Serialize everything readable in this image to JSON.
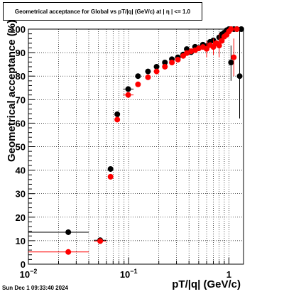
{
  "header": {
    "title": "Geometrical acceptance for Global vs pT/|q| (GeV/c) at |  η  | <= 1.0"
  },
  "footer": {
    "timestamp": "Sun Dec  1 09:33:40 2024"
  },
  "chart_data": {
    "type": "scatter",
    "title": "Geometrical acceptance for Global vs pT/|q| (GeV/c) at |  η  | <= 1.0",
    "xlabel": "pT/|q| (GeV/c)",
    "ylabel": "Geometrical acceptance (%)",
    "xscale": "log",
    "xlim": [
      0.01,
      1.4
    ],
    "ylim": [
      0,
      100
    ],
    "grid": true,
    "colors": {
      "black_series": "#000000",
      "red_series": "#ff0000"
    },
    "xticks": [
      {
        "value": 0.01,
        "base": "10",
        "exp": "−2"
      },
      {
        "value": 0.1,
        "base": "10",
        "exp": "−1"
      },
      {
        "value": 1,
        "base": "1",
        "exp": ""
      }
    ],
    "yticks": [
      0,
      10,
      20,
      30,
      40,
      50,
      60,
      70,
      80,
      90,
      100
    ],
    "series": [
      {
        "color": "#000000",
        "points": [
          {
            "x": 0.025,
            "y": 13.6,
            "xerr": [
              0.01,
              0.04
            ]
          },
          {
            "x": 0.052,
            "y": 10.2,
            "xerr": [
              0.045,
              0.06
            ]
          },
          {
            "x": 0.066,
            "y": 40.5
          },
          {
            "x": 0.077,
            "y": 63.8
          },
          {
            "x": 0.099,
            "y": 74.5,
            "xerr": [
              0.088,
              0.112
            ]
          },
          {
            "x": 0.124,
            "y": 80.0
          },
          {
            "x": 0.156,
            "y": 82.0
          },
          {
            "x": 0.19,
            "y": 84.0
          },
          {
            "x": 0.23,
            "y": 85.8
          },
          {
            "x": 0.27,
            "y": 87.2
          },
          {
            "x": 0.31,
            "y": 88.0
          },
          {
            "x": 0.35,
            "y": 89.2
          },
          {
            "x": 0.38,
            "y": 91.5
          },
          {
            "x": 0.42,
            "y": 90.2
          },
          {
            "x": 0.46,
            "y": 92.5
          },
          {
            "x": 0.5,
            "y": 92.0
          },
          {
            "x": 0.55,
            "y": 93.4
          },
          {
            "x": 0.6,
            "y": 92.8
          },
          {
            "x": 0.65,
            "y": 94.6
          },
          {
            "x": 0.7,
            "y": 95.2
          },
          {
            "x": 0.75,
            "y": 94.0
          },
          {
            "x": 0.8,
            "y": 96.5
          },
          {
            "x": 0.85,
            "y": 97.8
          },
          {
            "x": 0.9,
            "y": 98.5
          },
          {
            "x": 0.95,
            "y": 99.5
          },
          {
            "x": 1.0,
            "y": 100.0
          },
          {
            "x": 1.05,
            "y": 85.8,
            "yerr": [
              78,
              93
            ]
          },
          {
            "x": 1.12,
            "y": 100.0
          },
          {
            "x": 1.2,
            "y": 100.0
          },
          {
            "x": 1.28,
            "y": 80.0,
            "yerr": [
              62,
              100
            ]
          },
          {
            "x": 1.33,
            "y": 100.0
          }
        ]
      },
      {
        "color": "#ff0000",
        "points": [
          {
            "x": 0.025,
            "y": 5.2,
            "xerr": [
              0.01,
              0.04
            ]
          },
          {
            "x": 0.052,
            "y": 9.8,
            "xerr": [
              0.045,
              0.06
            ]
          },
          {
            "x": 0.066,
            "y": 37.2
          },
          {
            "x": 0.077,
            "y": 61.5
          },
          {
            "x": 0.099,
            "y": 72.0,
            "xerr": [
              0.088,
              0.112
            ]
          },
          {
            "x": 0.124,
            "y": 76.5
          },
          {
            "x": 0.156,
            "y": 79.5
          },
          {
            "x": 0.19,
            "y": 82.0
          },
          {
            "x": 0.23,
            "y": 84.0
          },
          {
            "x": 0.27,
            "y": 85.8
          },
          {
            "x": 0.31,
            "y": 87.0
          },
          {
            "x": 0.35,
            "y": 88.6
          },
          {
            "x": 0.38,
            "y": 89.8
          },
          {
            "x": 0.42,
            "y": 90.6
          },
          {
            "x": 0.46,
            "y": 91.0
          },
          {
            "x": 0.5,
            "y": 91.8
          },
          {
            "x": 0.55,
            "y": 92.4
          },
          {
            "x": 0.6,
            "y": 91.6,
            "yerr": [
              88,
              95
            ]
          },
          {
            "x": 0.65,
            "y": 93.2
          },
          {
            "x": 0.7,
            "y": 92.4,
            "yerr": [
              89,
              96
            ]
          },
          {
            "x": 0.75,
            "y": 94.0
          },
          {
            "x": 0.8,
            "y": 93.0,
            "yerr": [
              88,
              98
            ]
          },
          {
            "x": 0.85,
            "y": 95.0
          },
          {
            "x": 0.9,
            "y": 96.8
          },
          {
            "x": 0.95,
            "y": 97.6
          },
          {
            "x": 1.0,
            "y": 99.0
          },
          {
            "x": 1.05,
            "y": 100.0
          },
          {
            "x": 1.12,
            "y": 88.0,
            "yerr": [
              80,
              96
            ]
          },
          {
            "x": 1.2,
            "y": 100.0
          }
        ]
      }
    ]
  }
}
